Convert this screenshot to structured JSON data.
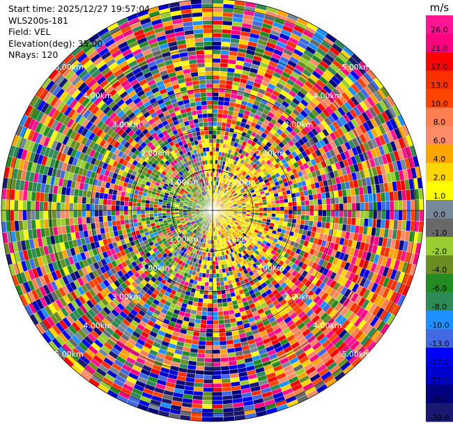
{
  "info": {
    "start_time": "Start time: 2025/12/27 19:57:04",
    "instrument": "WLS200s-181",
    "field": "Field: VEL",
    "elevation": "Elevation(deg): 35.00",
    "nrays": "NRays: 120"
  },
  "chart_data": {
    "type": "heatmap",
    "subtype": "polar-ppi",
    "field": "VEL",
    "nrays": 120,
    "max_range_km": 5.2,
    "range_ring_labels": [
      "1.00km",
      "2.00km",
      "3.00km",
      "4.00km",
      "5.00km"
    ],
    "range_rings_km": [
      1,
      2,
      3,
      4,
      5
    ],
    "colorbar": {
      "unit": "m/s",
      "tick_labels": [
        "26.0",
        "21.0",
        "17.0",
        "13.0",
        "10.0",
        "8.0",
        "6.0",
        "4.0",
        "2.0",
        "1.0",
        "0.0",
        "-1.0",
        "-2.0",
        "-4.0",
        "-6.0",
        "-8.0",
        "-10.0",
        "-13.0",
        "-17.0",
        "-21.0",
        "-26.0",
        "-30.0"
      ],
      "colors": [
        "#ff1493",
        "#ff0080",
        "#ff0000",
        "#ff3000",
        "#ff4500",
        "#ff7f50",
        "#ff8c69",
        "#ffa500",
        "#ffd700",
        "#ffff00",
        "#778899",
        "#696969",
        "#9acd32",
        "#6b8e23",
        "#228b22",
        "#2e8b57",
        "#1e90ff",
        "#4169e1",
        "#0000ff",
        "#0000cd",
        "#000080",
        "#191970"
      ]
    }
  }
}
